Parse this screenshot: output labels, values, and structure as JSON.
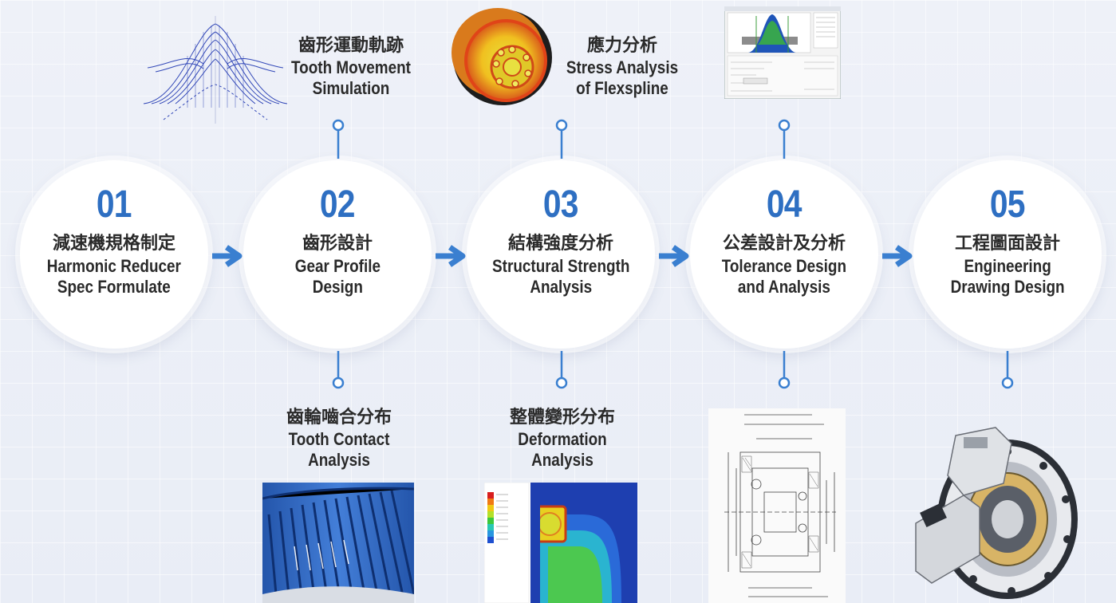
{
  "steps": [
    {
      "num": "01",
      "zh": "減速機規格制定",
      "en": "Harmonic Reducer\nSpec Formulate"
    },
    {
      "num": "02",
      "zh": "齒形設計",
      "en": "Gear Profile\nDesign"
    },
    {
      "num": "03",
      "zh": "結構強度分析",
      "en": "Structural Strength\nAnalysis"
    },
    {
      "num": "04",
      "zh": "公差設計及分析",
      "en": "Tolerance Design\nand Analysis"
    },
    {
      "num": "05",
      "zh": "工程圖面設計",
      "en": "Engineering\nDrawing Design"
    }
  ],
  "top_captions": [
    {
      "zh": "齒形運動軌跡",
      "en": "Tooth Movement\nSimulation"
    },
    {
      "zh": "應力分析",
      "en": "Stress Analysis\nof Flexspline"
    }
  ],
  "bottom_captions": [
    {
      "zh": "齒輪嚙合分布",
      "en": "Tooth Contact\nAnalysis"
    },
    {
      "zh": "整體變形分布",
      "en": "Deformation\nAnalysis"
    }
  ],
  "colors": {
    "accent": "#2e6fc2",
    "arrow": "#3a7fd0",
    "text": "#2a2a2a"
  }
}
